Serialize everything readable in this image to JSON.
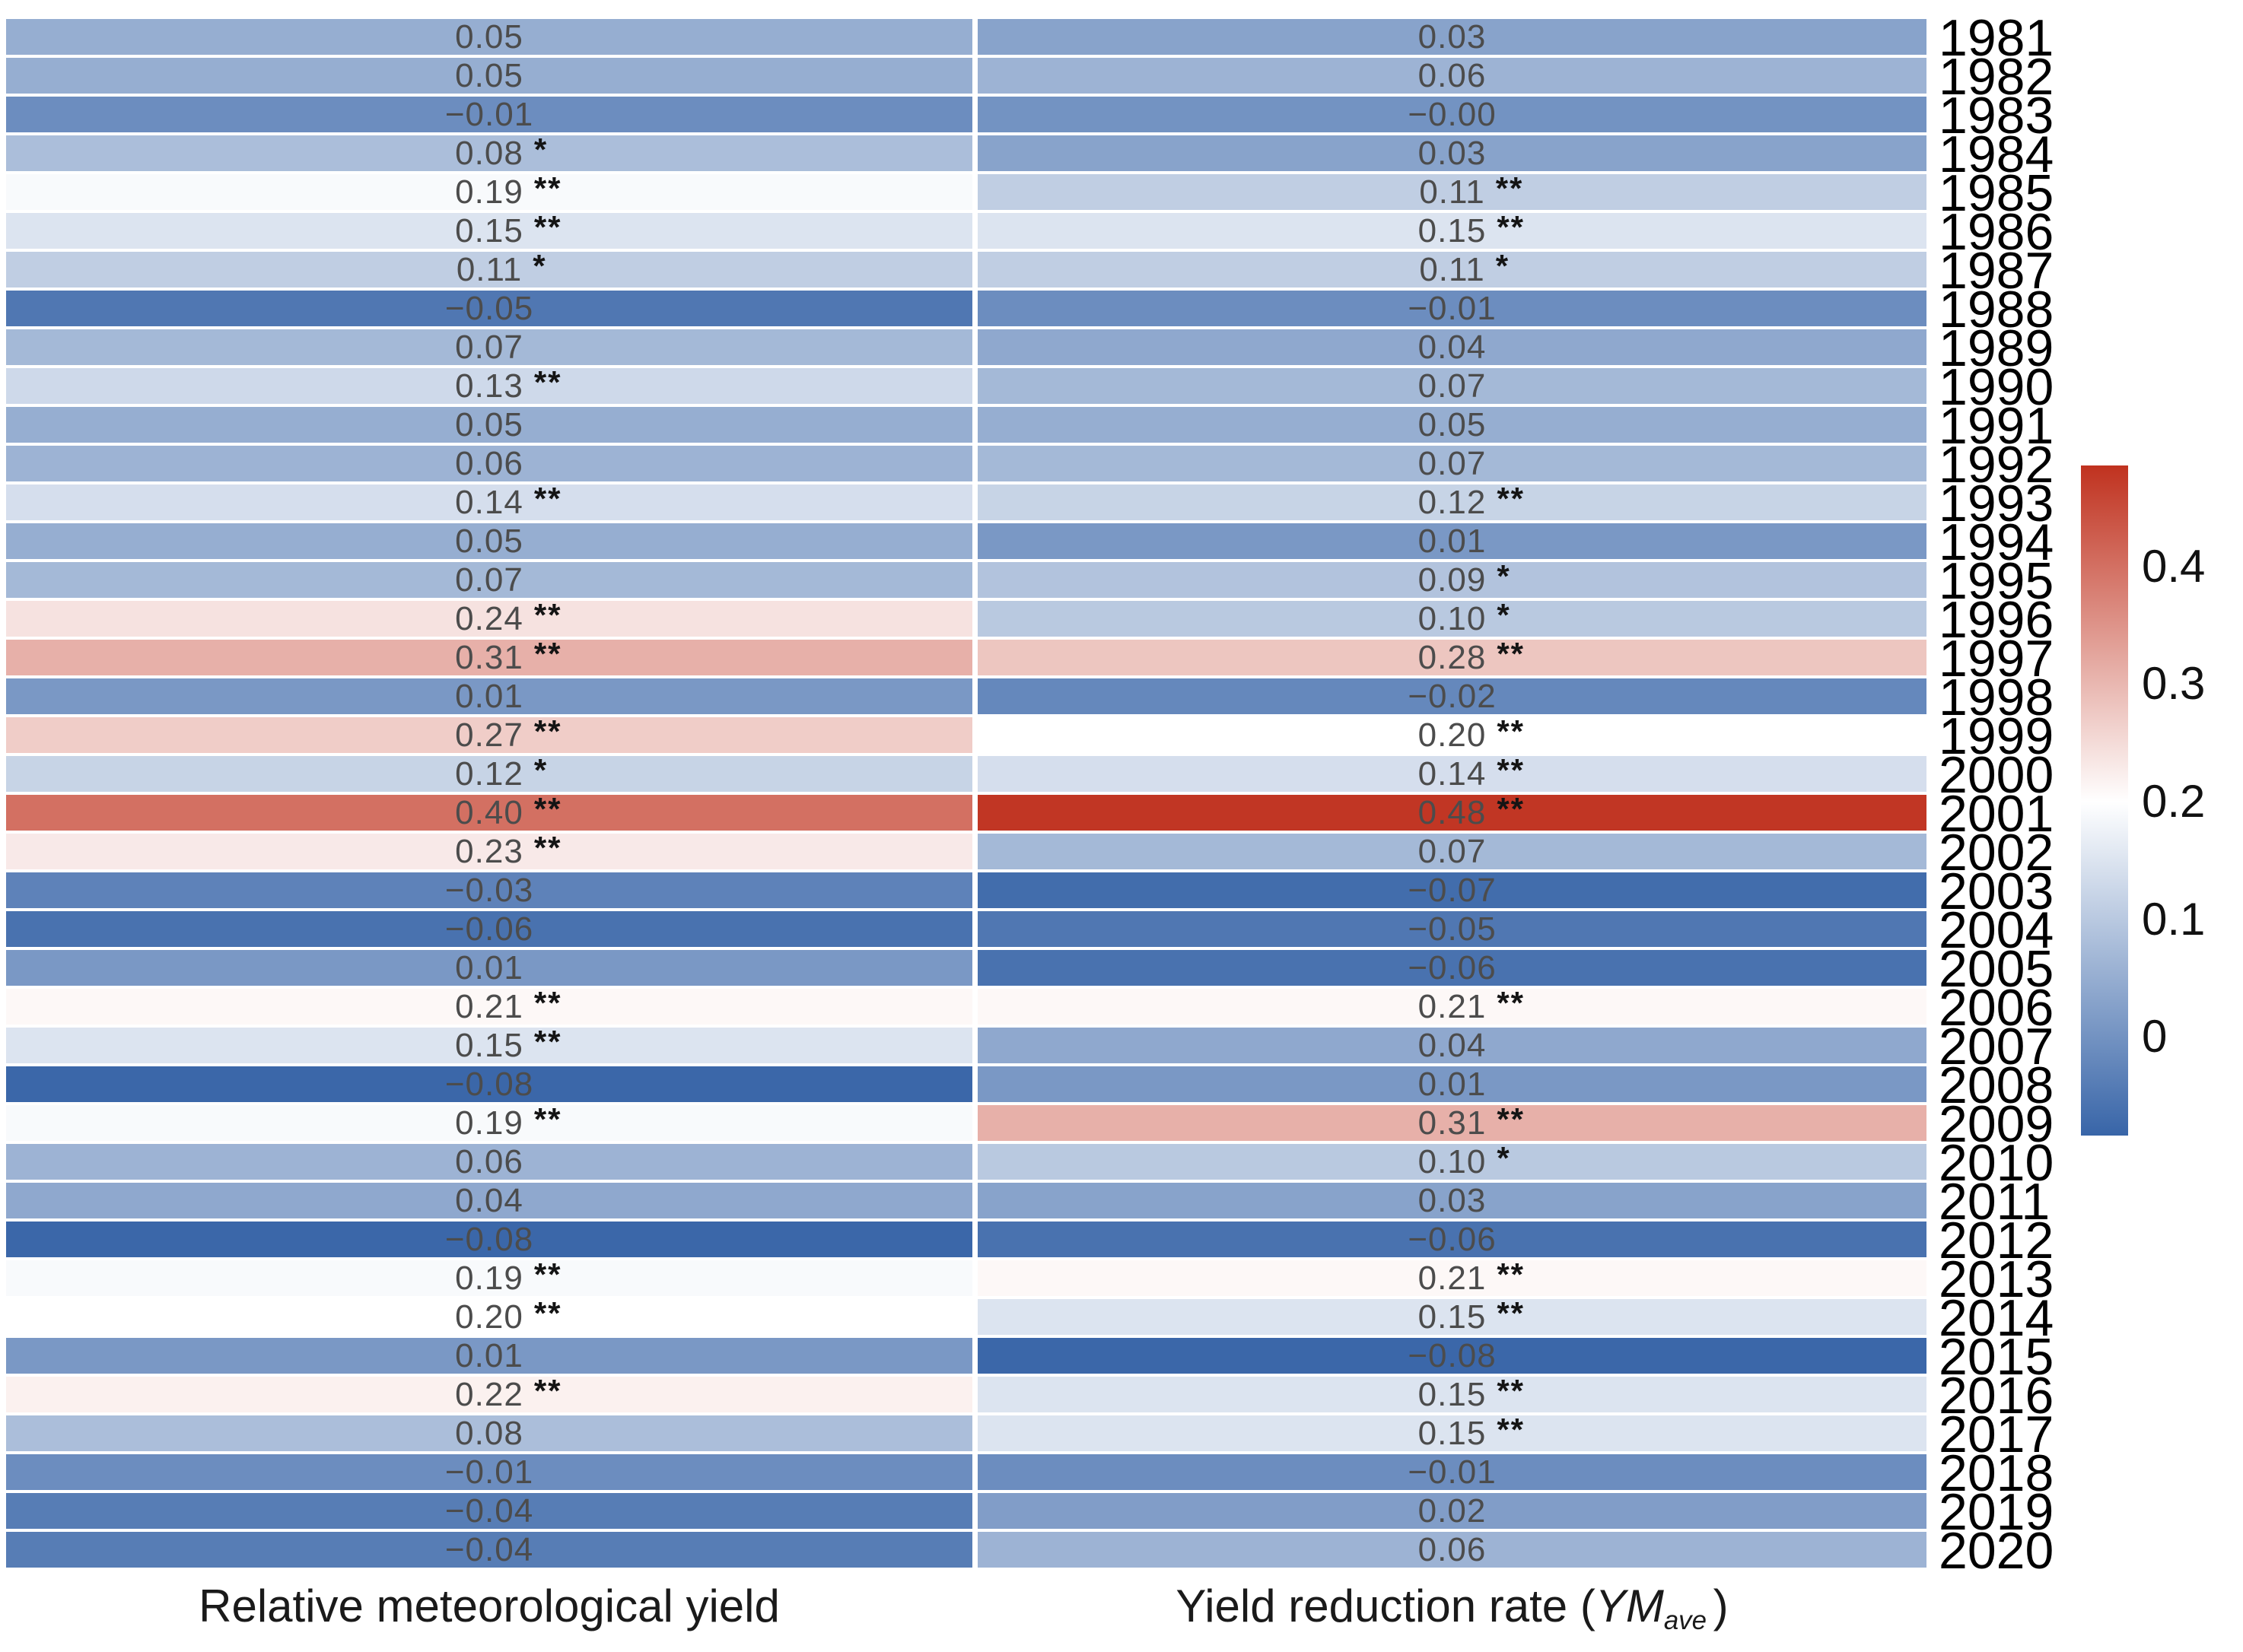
{
  "axis_labels": {
    "left": "Relative meteorological yield",
    "right_prefix": "Yield reduction rate (",
    "right_math": "YM",
    "right_sub": "ave",
    "right_suffix": ")"
  },
  "chart_data": {
    "type": "heatmap",
    "title": "",
    "rows_are": "years",
    "columns": [
      "Relative meteorological yield",
      "Yield reduction rate (YM_ave)"
    ],
    "years": [
      "1981",
      "1982",
      "1983",
      "1984",
      "1985",
      "1986",
      "1987",
      "1988",
      "1989",
      "1990",
      "1991",
      "1992",
      "1993",
      "1994",
      "1995",
      "1996",
      "1997",
      "1998",
      "1999",
      "2000",
      "2001",
      "2002",
      "2003",
      "2004",
      "2005",
      "2006",
      "2007",
      "2008",
      "2009",
      "2010",
      "2011",
      "2012",
      "2013",
      "2014",
      "2015",
      "2016",
      "2017",
      "2018",
      "2019",
      "2020"
    ],
    "series": [
      {
        "name": "Relative meteorological yield",
        "values": [
          "0.05",
          "0.05",
          "−0.01",
          "0.08",
          "0.19",
          "0.15",
          "0.11",
          "−0.05",
          "0.07",
          "0.13",
          "0.05",
          "0.06",
          "0.14",
          "0.05",
          "0.07",
          "0.24",
          "0.31",
          "0.01",
          "0.27",
          "0.12",
          "0.40",
          "0.23",
          "−0.03",
          "−0.06",
          "0.01",
          "0.21",
          "0.15",
          "−0.08",
          "0.19",
          "0.06",
          "0.04",
          "−0.08",
          "0.19",
          "0.20",
          "0.01",
          "0.22",
          "0.08",
          "−0.01",
          "−0.04",
          "−0.04"
        ],
        "significance": [
          "",
          "",
          "",
          "*",
          "**",
          "**",
          "*",
          "",
          "",
          "**",
          "",
          "",
          "**",
          "",
          "",
          "**",
          "**",
          "",
          "**",
          "*",
          "**",
          "**",
          "",
          "",
          "",
          "**",
          "**",
          "",
          "**",
          "",
          "",
          "",
          "**",
          "**",
          "",
          "**",
          "",
          "",
          "",
          ""
        ]
      },
      {
        "name": "Yield reduction rate (YM_ave)",
        "values": [
          "0.03",
          "0.06",
          "−0.00",
          "0.03",
          "0.11",
          "0.15",
          "0.11",
          "−0.01",
          "0.04",
          "0.07",
          "0.05",
          "0.07",
          "0.12",
          "0.01",
          "0.09",
          "0.10",
          "0.28",
          "−0.02",
          "0.20",
          "0.14",
          "0.48",
          "0.07",
          "−0.07",
          "−0.05",
          "−0.06",
          "0.21",
          "0.04",
          "0.01",
          "0.31",
          "0.10",
          "0.03",
          "−0.06",
          "0.21",
          "0.15",
          "−0.08",
          "0.15",
          "0.15",
          "−0.01",
          "0.02",
          "0.06"
        ],
        "significance": [
          "",
          "",
          "",
          "",
          "**",
          "**",
          "*",
          "",
          "",
          "",
          "",
          "",
          "**",
          "",
          "*",
          "*",
          "**",
          "",
          "**",
          "**",
          "**",
          "",
          "",
          "",
          "",
          "**",
          "",
          "",
          "**",
          "*",
          "",
          "",
          "**",
          "**",
          "",
          "**",
          "**",
          "",
          "",
          ""
        ]
      }
    ],
    "colorbar": {
      "ticks": [
        {
          "label": "0.4",
          "value": 0.4
        },
        {
          "label": "0.3",
          "value": 0.3
        },
        {
          "label": "0.2",
          "value": 0.2
        },
        {
          "label": "0.1",
          "value": 0.1
        },
        {
          "label": "0",
          "value": 0.0
        }
      ],
      "domain_top": 0.486,
      "domain_bottom": -0.084,
      "white_at": 0.2,
      "color_top": "#c0321f",
      "color_mid": "#ffffff",
      "color_bottom": "#3865a8",
      "position": "right"
    },
    "legend_note": "* and ** denote significance markers shown beside cell values"
  }
}
